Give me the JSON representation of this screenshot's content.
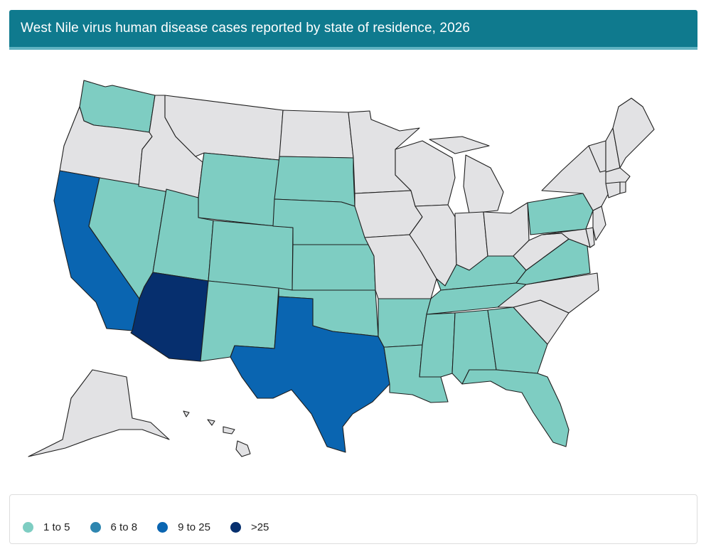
{
  "header": {
    "title": "West Nile virus human disease cases reported by state of residence, 2026"
  },
  "colors": {
    "header_bg": "#0f7a8e",
    "no_cases": "#e2e2e4",
    "bin_1_5": "#7ecdc2",
    "bin_6_8": "#2e86b0",
    "bin_9_25": "#0a65b1",
    "bin_gt25": "#062f6e"
  },
  "legend": {
    "items": [
      {
        "label": "1 to 5",
        "color": "#7ecdc2"
      },
      {
        "label": "6 to 8",
        "color": "#2e86b0"
      },
      {
        "label": "9 to 25",
        "color": "#0a65b1"
      },
      {
        "label": ">25",
        "color": "#062f6e"
      }
    ]
  },
  "map": {
    "state_categories": {
      "Washington": "1 to 5",
      "Oregon": "none",
      "California": "9 to 25",
      "Nevada": "1 to 5",
      "Idaho": "none",
      "Montana": "none",
      "Wyoming": "1 to 5",
      "Utah": "1 to 5",
      "Arizona": ">25",
      "Colorado": "1 to 5",
      "New Mexico": "1 to 5",
      "North Dakota": "none",
      "South Dakota": "1 to 5",
      "Nebraska": "1 to 5",
      "Kansas": "1 to 5",
      "Oklahoma": "1 to 5",
      "Texas": "9 to 25",
      "Minnesota": "none",
      "Iowa": "none",
      "Missouri": "none",
      "Arkansas": "1 to 5",
      "Louisiana": "1 to 5",
      "Wisconsin": "none",
      "Illinois": "none",
      "Michigan": "none",
      "Indiana": "none",
      "Ohio": "none",
      "Kentucky": "1 to 5",
      "Tennessee": "1 to 5",
      "Mississippi": "1 to 5",
      "Alabama": "1 to 5",
      "Georgia": "1 to 5",
      "Florida": "1 to 5",
      "South Carolina": "none",
      "North Carolina": "none",
      "Virginia": "1 to 5",
      "West Virginia": "none",
      "Pennsylvania": "1 to 5",
      "New York": "none",
      "Vermont": "none",
      "New Hampshire": "none",
      "Maine": "none",
      "Massachusetts": "none",
      "Connecticut": "none",
      "Rhode Island": "none",
      "New Jersey": "none",
      "Delaware": "none",
      "Maryland": "none",
      "Alaska": "none",
      "Hawaii": "none"
    }
  }
}
